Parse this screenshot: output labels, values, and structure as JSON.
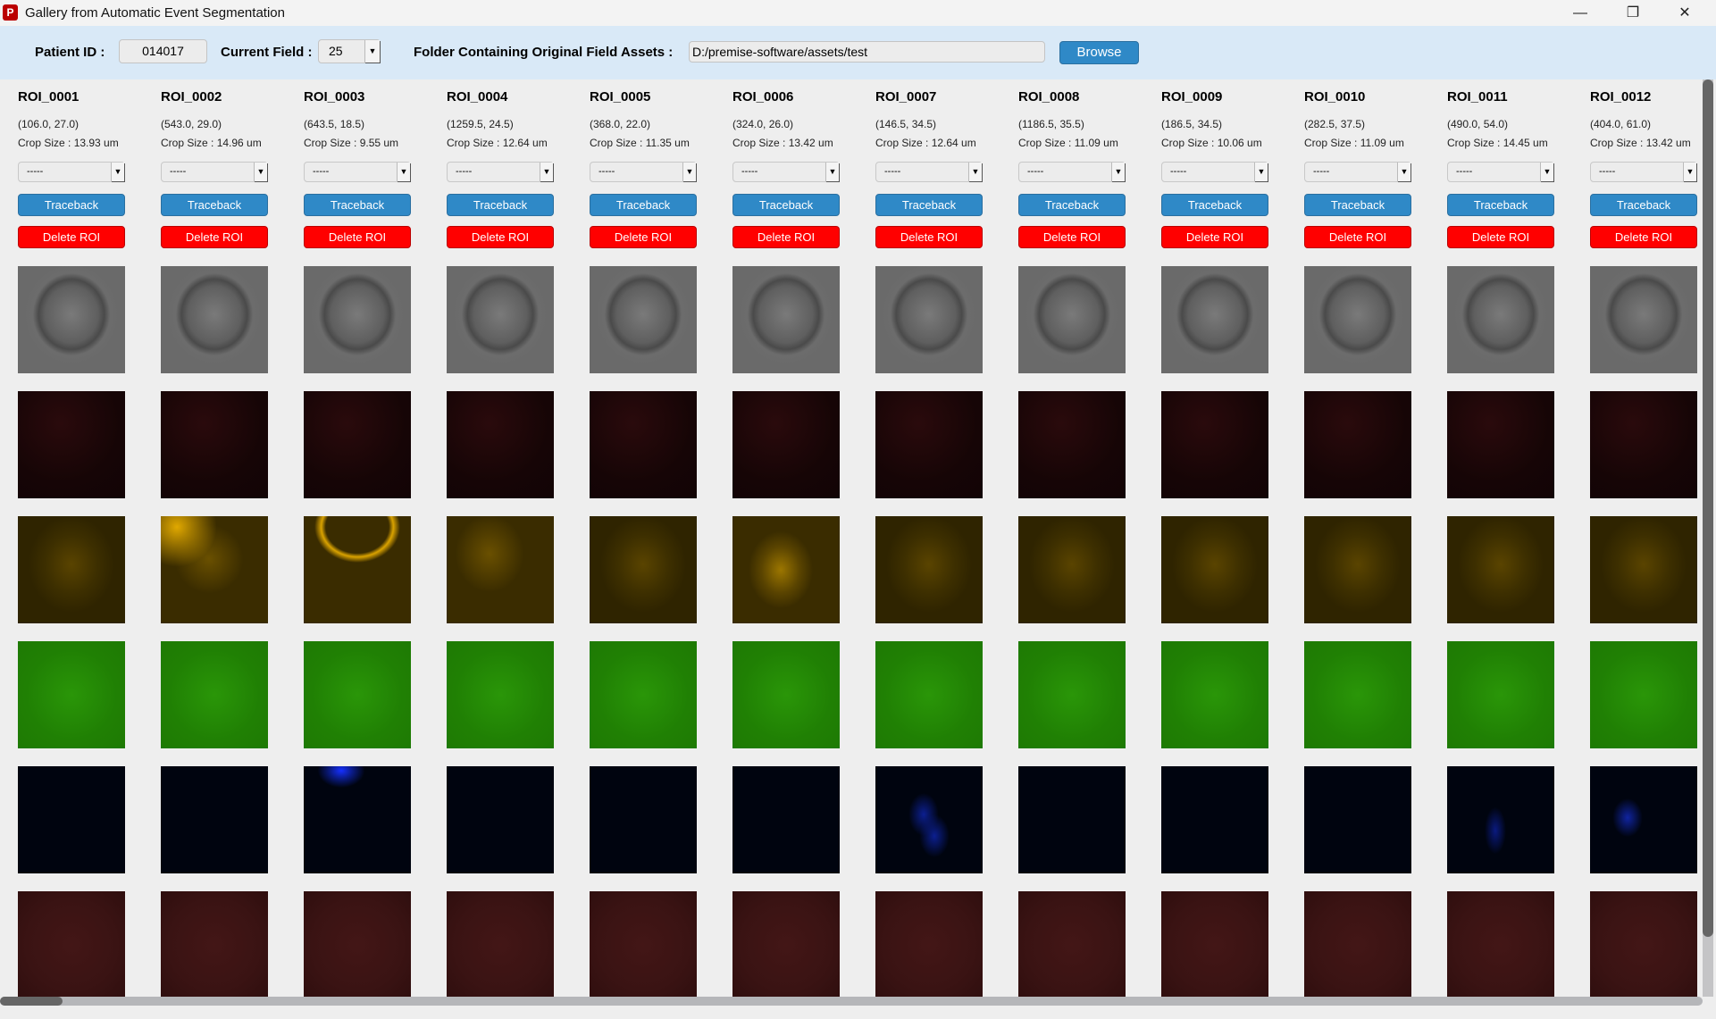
{
  "window": {
    "title": "Gallery from Automatic Event Segmentation",
    "controls": {
      "minimize": "—",
      "restore": "❐",
      "close": "✕"
    }
  },
  "toolbar": {
    "patient_id_label": "Patient ID :",
    "patient_id_value": "014017",
    "current_field_label": "Current Field :",
    "current_field_value": "25",
    "folder_label": "Folder Containing Original Field Assets :",
    "folder_value": "D:/premise-software/assets/test",
    "browse_label": "Browse"
  },
  "colors": {
    "accent_blue": "#2f89c7",
    "delete_red": "#ff0000",
    "toolbar_bg": "#d9e9f7"
  },
  "channels": [
    "brightfield",
    "red",
    "yellow",
    "green",
    "blue",
    "dark-red"
  ],
  "rois": [
    {
      "name": "ROI_0001",
      "coords": "(106.0, 27.0)",
      "crop": "Crop Size : 13.93 um",
      "class": "-----",
      "traceback": "Traceback",
      "delete": "Delete ROI"
    },
    {
      "name": "ROI_0002",
      "coords": "(543.0, 29.0)",
      "crop": "Crop Size : 14.96 um",
      "class": "-----",
      "traceback": "Traceback",
      "delete": "Delete ROI"
    },
    {
      "name": "ROI_0003",
      "coords": "(643.5, 18.5)",
      "crop": "Crop Size : 9.55 um",
      "class": "-----",
      "traceback": "Traceback",
      "delete": "Delete ROI"
    },
    {
      "name": "ROI_0004",
      "coords": "(1259.5, 24.5)",
      "crop": "Crop Size : 12.64 um",
      "class": "-----",
      "traceback": "Traceback",
      "delete": "Delete ROI"
    },
    {
      "name": "ROI_0005",
      "coords": "(368.0, 22.0)",
      "crop": "Crop Size : 11.35 um",
      "class": "-----",
      "traceback": "Traceback",
      "delete": "Delete ROI"
    },
    {
      "name": "ROI_0006",
      "coords": "(324.0, 26.0)",
      "crop": "Crop Size : 13.42 um",
      "class": "-----",
      "traceback": "Traceback",
      "delete": "Delete ROI"
    },
    {
      "name": "ROI_0007",
      "coords": "(146.5, 34.5)",
      "crop": "Crop Size : 12.64 um",
      "class": "-----",
      "traceback": "Traceback",
      "delete": "Delete ROI"
    },
    {
      "name": "ROI_0008",
      "coords": "(1186.5, 35.5)",
      "crop": "Crop Size : 11.09 um",
      "class": "-----",
      "traceback": "Traceback",
      "delete": "Delete ROI"
    },
    {
      "name": "ROI_0009",
      "coords": "(186.5, 34.5)",
      "crop": "Crop Size : 10.06 um",
      "class": "-----",
      "traceback": "Traceback",
      "delete": "Delete ROI"
    },
    {
      "name": "ROI_0010",
      "coords": "(282.5, 37.5)",
      "crop": "Crop Size : 11.09 um",
      "class": "-----",
      "traceback": "Traceback",
      "delete": "Delete ROI"
    },
    {
      "name": "ROI_0011",
      "coords": "(490.0, 54.0)",
      "crop": "Crop Size : 14.45 um",
      "class": "-----",
      "traceback": "Traceback",
      "delete": "Delete ROI"
    },
    {
      "name": "ROI_0012",
      "coords": "(404.0, 61.0)",
      "crop": "Crop Size : 13.42 um",
      "class": "-----",
      "traceback": "Traceback",
      "delete": "Delete ROI"
    }
  ]
}
